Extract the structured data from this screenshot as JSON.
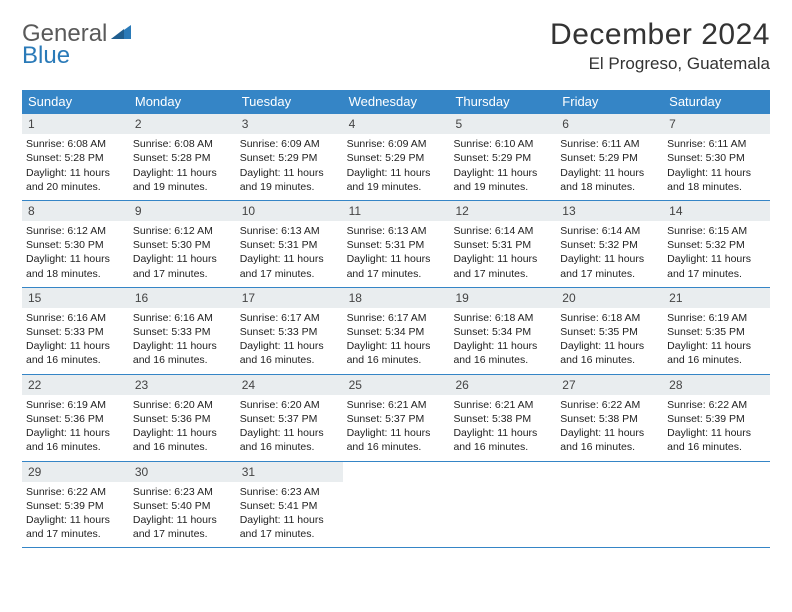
{
  "logo": {
    "part1": "General",
    "part2": "Blue"
  },
  "title": "December 2024",
  "location": "El Progreso, Guatemala",
  "colors": {
    "headerBg": "#3585c6",
    "dayNumBg": "#e9edef",
    "rule": "#3585c6",
    "logoGray": "#5a5a5a",
    "logoBlue": "#2a7ab8"
  },
  "weekdays": [
    "Sunday",
    "Monday",
    "Tuesday",
    "Wednesday",
    "Thursday",
    "Friday",
    "Saturday"
  ],
  "weeks": [
    [
      {
        "n": "1",
        "sunrise": "Sunrise: 6:08 AM",
        "sunset": "Sunset: 5:28 PM",
        "daylight": "Daylight: 11 hours and 20 minutes."
      },
      {
        "n": "2",
        "sunrise": "Sunrise: 6:08 AM",
        "sunset": "Sunset: 5:28 PM",
        "daylight": "Daylight: 11 hours and 19 minutes."
      },
      {
        "n": "3",
        "sunrise": "Sunrise: 6:09 AM",
        "sunset": "Sunset: 5:29 PM",
        "daylight": "Daylight: 11 hours and 19 minutes."
      },
      {
        "n": "4",
        "sunrise": "Sunrise: 6:09 AM",
        "sunset": "Sunset: 5:29 PM",
        "daylight": "Daylight: 11 hours and 19 minutes."
      },
      {
        "n": "5",
        "sunrise": "Sunrise: 6:10 AM",
        "sunset": "Sunset: 5:29 PM",
        "daylight": "Daylight: 11 hours and 19 minutes."
      },
      {
        "n": "6",
        "sunrise": "Sunrise: 6:11 AM",
        "sunset": "Sunset: 5:29 PM",
        "daylight": "Daylight: 11 hours and 18 minutes."
      },
      {
        "n": "7",
        "sunrise": "Sunrise: 6:11 AM",
        "sunset": "Sunset: 5:30 PM",
        "daylight": "Daylight: 11 hours and 18 minutes."
      }
    ],
    [
      {
        "n": "8",
        "sunrise": "Sunrise: 6:12 AM",
        "sunset": "Sunset: 5:30 PM",
        "daylight": "Daylight: 11 hours and 18 minutes."
      },
      {
        "n": "9",
        "sunrise": "Sunrise: 6:12 AM",
        "sunset": "Sunset: 5:30 PM",
        "daylight": "Daylight: 11 hours and 17 minutes."
      },
      {
        "n": "10",
        "sunrise": "Sunrise: 6:13 AM",
        "sunset": "Sunset: 5:31 PM",
        "daylight": "Daylight: 11 hours and 17 minutes."
      },
      {
        "n": "11",
        "sunrise": "Sunrise: 6:13 AM",
        "sunset": "Sunset: 5:31 PM",
        "daylight": "Daylight: 11 hours and 17 minutes."
      },
      {
        "n": "12",
        "sunrise": "Sunrise: 6:14 AM",
        "sunset": "Sunset: 5:31 PM",
        "daylight": "Daylight: 11 hours and 17 minutes."
      },
      {
        "n": "13",
        "sunrise": "Sunrise: 6:14 AM",
        "sunset": "Sunset: 5:32 PM",
        "daylight": "Daylight: 11 hours and 17 minutes."
      },
      {
        "n": "14",
        "sunrise": "Sunrise: 6:15 AM",
        "sunset": "Sunset: 5:32 PM",
        "daylight": "Daylight: 11 hours and 17 minutes."
      }
    ],
    [
      {
        "n": "15",
        "sunrise": "Sunrise: 6:16 AM",
        "sunset": "Sunset: 5:33 PM",
        "daylight": "Daylight: 11 hours and 16 minutes."
      },
      {
        "n": "16",
        "sunrise": "Sunrise: 6:16 AM",
        "sunset": "Sunset: 5:33 PM",
        "daylight": "Daylight: 11 hours and 16 minutes."
      },
      {
        "n": "17",
        "sunrise": "Sunrise: 6:17 AM",
        "sunset": "Sunset: 5:33 PM",
        "daylight": "Daylight: 11 hours and 16 minutes."
      },
      {
        "n": "18",
        "sunrise": "Sunrise: 6:17 AM",
        "sunset": "Sunset: 5:34 PM",
        "daylight": "Daylight: 11 hours and 16 minutes."
      },
      {
        "n": "19",
        "sunrise": "Sunrise: 6:18 AM",
        "sunset": "Sunset: 5:34 PM",
        "daylight": "Daylight: 11 hours and 16 minutes."
      },
      {
        "n": "20",
        "sunrise": "Sunrise: 6:18 AM",
        "sunset": "Sunset: 5:35 PM",
        "daylight": "Daylight: 11 hours and 16 minutes."
      },
      {
        "n": "21",
        "sunrise": "Sunrise: 6:19 AM",
        "sunset": "Sunset: 5:35 PM",
        "daylight": "Daylight: 11 hours and 16 minutes."
      }
    ],
    [
      {
        "n": "22",
        "sunrise": "Sunrise: 6:19 AM",
        "sunset": "Sunset: 5:36 PM",
        "daylight": "Daylight: 11 hours and 16 minutes."
      },
      {
        "n": "23",
        "sunrise": "Sunrise: 6:20 AM",
        "sunset": "Sunset: 5:36 PM",
        "daylight": "Daylight: 11 hours and 16 minutes."
      },
      {
        "n": "24",
        "sunrise": "Sunrise: 6:20 AM",
        "sunset": "Sunset: 5:37 PM",
        "daylight": "Daylight: 11 hours and 16 minutes."
      },
      {
        "n": "25",
        "sunrise": "Sunrise: 6:21 AM",
        "sunset": "Sunset: 5:37 PM",
        "daylight": "Daylight: 11 hours and 16 minutes."
      },
      {
        "n": "26",
        "sunrise": "Sunrise: 6:21 AM",
        "sunset": "Sunset: 5:38 PM",
        "daylight": "Daylight: 11 hours and 16 minutes."
      },
      {
        "n": "27",
        "sunrise": "Sunrise: 6:22 AM",
        "sunset": "Sunset: 5:38 PM",
        "daylight": "Daylight: 11 hours and 16 minutes."
      },
      {
        "n": "28",
        "sunrise": "Sunrise: 6:22 AM",
        "sunset": "Sunset: 5:39 PM",
        "daylight": "Daylight: 11 hours and 16 minutes."
      }
    ],
    [
      {
        "n": "29",
        "sunrise": "Sunrise: 6:22 AM",
        "sunset": "Sunset: 5:39 PM",
        "daylight": "Daylight: 11 hours and 17 minutes."
      },
      {
        "n": "30",
        "sunrise": "Sunrise: 6:23 AM",
        "sunset": "Sunset: 5:40 PM",
        "daylight": "Daylight: 11 hours and 17 minutes."
      },
      {
        "n": "31",
        "sunrise": "Sunrise: 6:23 AM",
        "sunset": "Sunset: 5:41 PM",
        "daylight": "Daylight: 11 hours and 17 minutes."
      },
      null,
      null,
      null,
      null
    ]
  ]
}
